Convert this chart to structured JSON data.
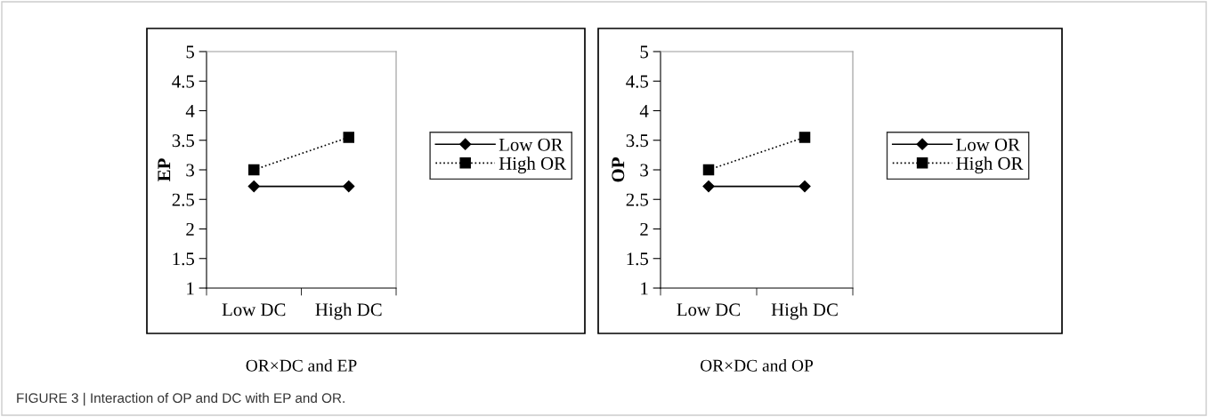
{
  "chart_data": [
    {
      "type": "line",
      "categories": [
        "Low DC",
        "High DC"
      ],
      "xlabel": "OR×DC and EP",
      "ylabel": "EP",
      "ylim": [
        1,
        5
      ],
      "yticks": [
        1,
        1.5,
        2,
        2.5,
        3,
        3.5,
        4,
        4.5,
        5
      ],
      "legend": "right",
      "grid": false,
      "series": [
        {
          "name": "Low OR",
          "color": "#000000",
          "values": [
            2.72,
            2.72
          ],
          "marker": "diamond",
          "line_style": "solid"
        },
        {
          "name": "High OR",
          "color": "#000000",
          "values": [
            3.0,
            3.55
          ],
          "marker": "square",
          "line_style": "dotted"
        }
      ]
    },
    {
      "type": "line",
      "categories": [
        "Low DC",
        "High DC"
      ],
      "xlabel": "OR×DC and OP",
      "ylabel": "OP",
      "ylim": [
        1,
        5
      ],
      "yticks": [
        1,
        1.5,
        2,
        2.5,
        3,
        3.5,
        4,
        4.5,
        5
      ],
      "legend": "right",
      "grid": false,
      "annotations": [
        "FIGURE 3 | Interaction of OP and DC with EP and OR."
      ],
      "series": [
        {
          "name": "Low OR",
          "color": "#000000",
          "values": [
            2.72,
            2.72
          ],
          "marker": "diamond",
          "line_style": "solid"
        },
        {
          "name": "High OR",
          "color": "#000000",
          "values": [
            3.0,
            3.55
          ],
          "marker": "square",
          "line_style": "dotted"
        }
      ]
    }
  ]
}
